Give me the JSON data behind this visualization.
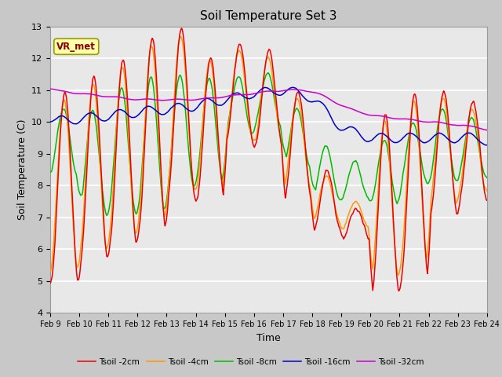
{
  "title": "Soil Temperature Set 3",
  "xlabel": "Time",
  "ylabel": "Soil Temperature (C)",
  "ylim": [
    4.0,
    13.0
  ],
  "yticks": [
    4.0,
    5.0,
    6.0,
    7.0,
    8.0,
    9.0,
    10.0,
    11.0,
    12.0,
    13.0
  ],
  "xtick_labels": [
    "Feb 9",
    "Feb 10",
    "Feb 11",
    "Feb 12",
    "Feb 13",
    "Feb 14",
    "Feb 15",
    "Feb 16",
    "Feb 17",
    "Feb 18",
    "Feb 19",
    "Feb 20",
    "Feb 21",
    "Feb 22",
    "Feb 23",
    "Feb 24"
  ],
  "colors": {
    "Tsoil -2cm": "#ee0000",
    "Tsoil -4cm": "#ff9900",
    "Tsoil -8cm": "#00bb00",
    "Tsoil -16cm": "#0000cc",
    "Tsoil -32cm": "#cc00cc"
  },
  "legend_label": "VR_met",
  "fig_bg": "#c8c8c8",
  "plot_bg": "#e8e8e8",
  "grid_color": "#ffffff"
}
